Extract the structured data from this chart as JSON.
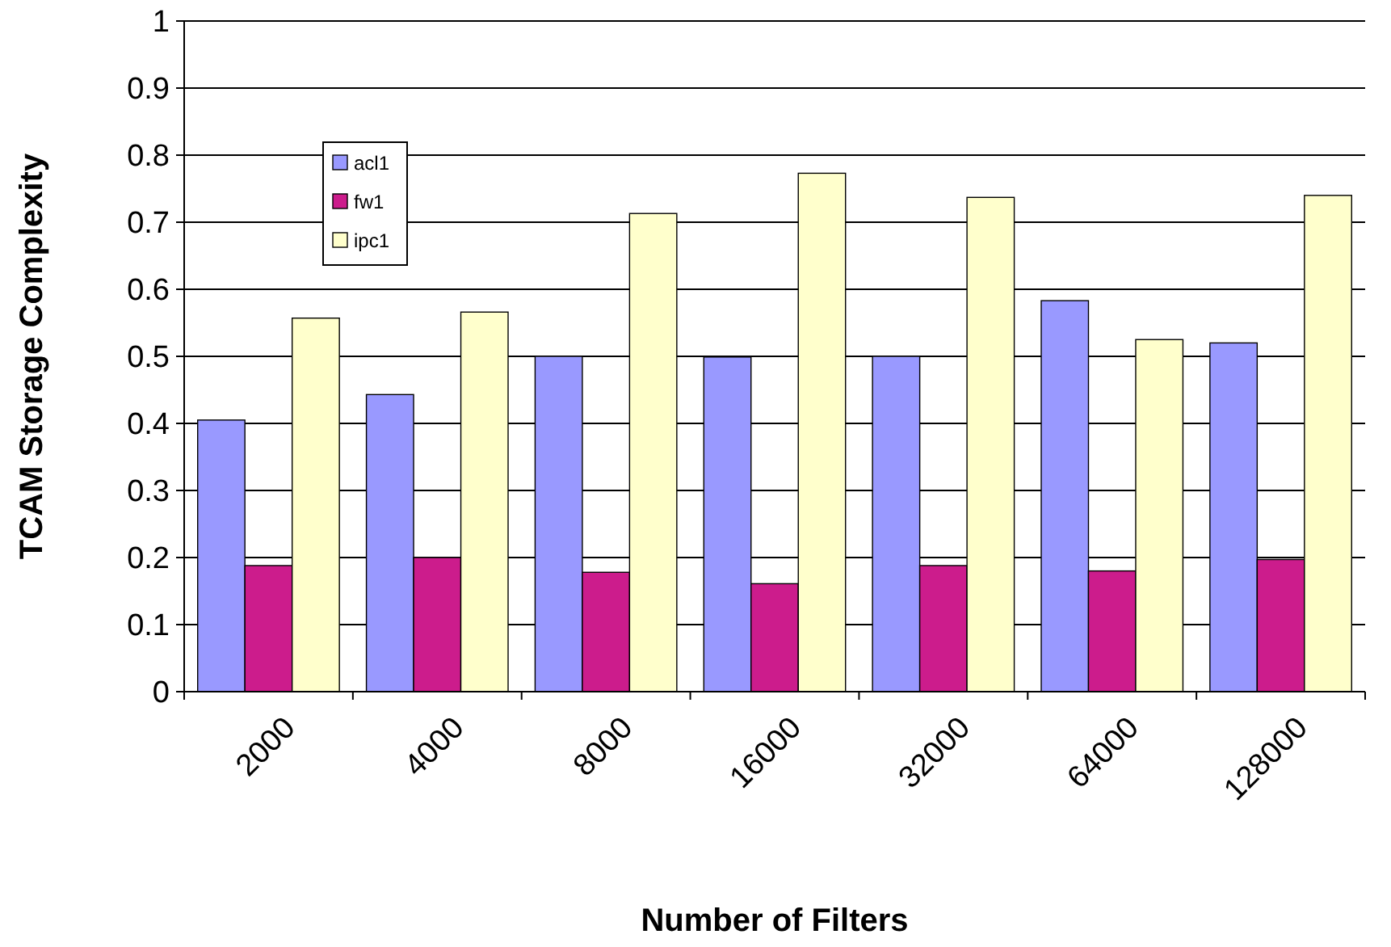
{
  "chart_data": {
    "type": "bar",
    "xlabel": "Number of Filters",
    "ylabel": "TCAM Storage Complexity",
    "categories": [
      "2000",
      "4000",
      "8000",
      "16000",
      "32000",
      "64000",
      "128000"
    ],
    "series": [
      {
        "name": "acl1",
        "color": "#9999ff",
        "values": [
          0.405,
          0.443,
          0.5,
          0.499,
          0.5,
          0.583,
          0.52
        ]
      },
      {
        "name": "fw1",
        "color": "#cc1c8c",
        "values": [
          0.188,
          0.2,
          0.178,
          0.161,
          0.188,
          0.18,
          0.197
        ]
      },
      {
        "name": "ipc1",
        "color": "#ffffcc",
        "values": [
          0.557,
          0.566,
          0.713,
          0.773,
          0.737,
          0.525,
          0.74
        ]
      }
    ],
    "ylim": [
      0,
      1
    ],
    "yticks": [
      0,
      0.1,
      0.2,
      0.3,
      0.4,
      0.5,
      0.6,
      0.7,
      0.8,
      0.9,
      1
    ],
    "grid": "y",
    "legend": "top left"
  }
}
